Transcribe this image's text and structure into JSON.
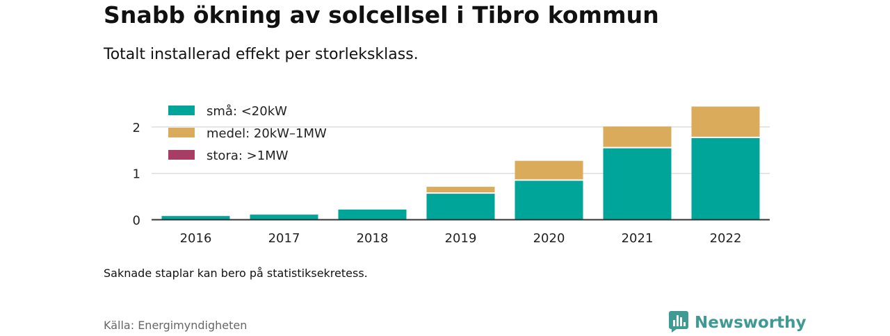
{
  "title": "Snabb ökning av solcellsel i Tibro kommun",
  "subtitle": "Totalt installerad effekt per storleksklass.",
  "note": "Saknade staplar kan bero på statistiksekretess.",
  "source": "Källa: Energimyndigheten",
  "brand": {
    "name": "Newsworthy",
    "icon": "newsworthy-logo-icon",
    "color": "#3e9a93"
  },
  "chart_data": {
    "type": "bar",
    "stacked": true,
    "categories": [
      "2016",
      "2017",
      "2018",
      "2019",
      "2020",
      "2021",
      "2022"
    ],
    "series": [
      {
        "name": "små: <20kW",
        "color": "#00a599",
        "values": [
          0.08,
          0.11,
          0.22,
          0.56,
          0.84,
          1.54,
          1.76
        ]
      },
      {
        "name": "medel: 20kW–1MW",
        "color": "#d9ab5a",
        "values": [
          0,
          0,
          0,
          0.15,
          0.43,
          0.47,
          0.68
        ]
      },
      {
        "name": "stora: >1MW",
        "color": "#a83d64",
        "values": [
          0,
          0,
          0,
          0,
          0,
          0,
          0
        ]
      }
    ],
    "ylim": [
      0,
      2.5
    ],
    "yticks": [
      0,
      1,
      2
    ],
    "grid": true,
    "legend": "top-left"
  }
}
